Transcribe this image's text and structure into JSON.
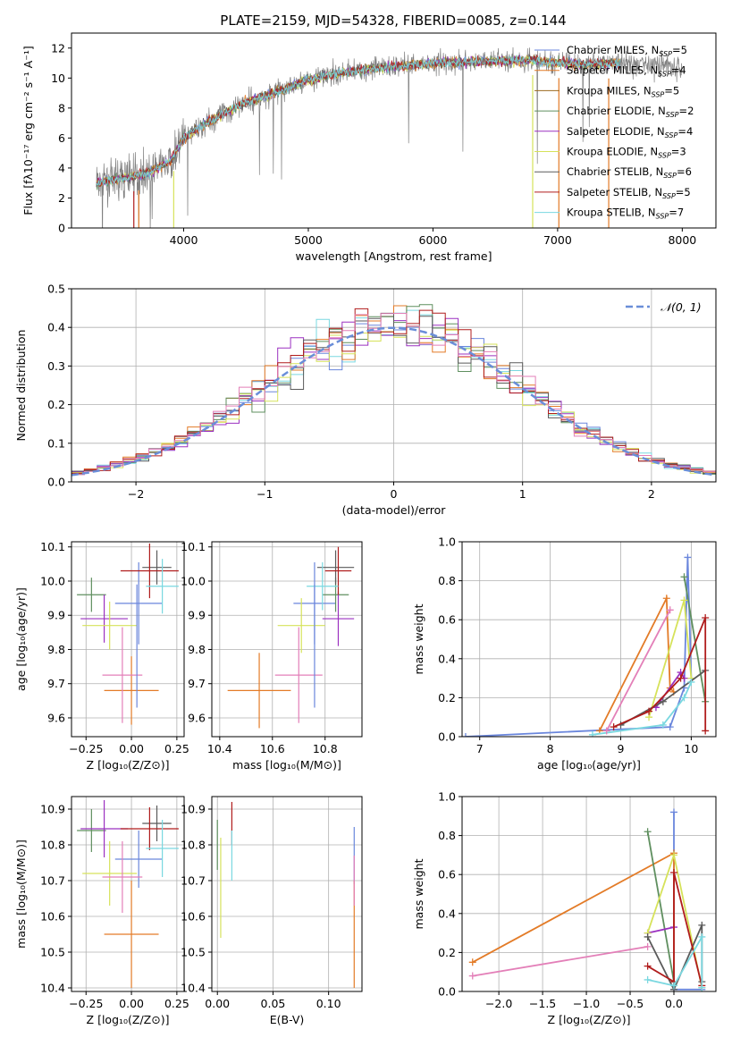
{
  "title": "PLATE=2159, MJD=54328, FIBERID=0085, z=0.144",
  "colors": {
    "Chabrier MILES": "#6a86dc",
    "Salpeter MILES": "#e37b27",
    "Kroupa MILES": "#9b6a1f",
    "Chabrier ELODIE": "#5f8f5f",
    "Salpeter ELODIE": "#9b30c0",
    "Kroupa ELODIE": "#d6e25a",
    "Chabrier STELIB": "#5a5a5a",
    "Salpeter STELIB": "#b01c1c",
    "Kroupa STELIB": "#7ad8e0",
    "pink": "#e37fb8",
    "data": "#808080",
    "grid": "#b0b0b0",
    "gauss": "#6a8ed8"
  },
  "chart_data": [
    {
      "type": "line",
      "name": "spectrum",
      "xlabel": "wavelength [Angstrom, rest frame]",
      "ylabel": "Flux [fλ10⁻¹⁷ erg cm⁻² s⁻¹ A⁻¹]",
      "xlim": [
        3100,
        8270
      ],
      "ylim": [
        0,
        13
      ],
      "xticks": [
        "4000",
        "5000",
        "6000",
        "7000",
        "8000"
      ],
      "yticks": [
        "0",
        "2",
        "4",
        "6",
        "8",
        "10",
        "12"
      ],
      "grid": false,
      "legend_position": "top-right",
      "legend": [
        "Chabrier MILES, N_SSP=5",
        "Salpeter MILES, N_SSP=4",
        "Kroupa MILES, N_SSP=5",
        "Chabrier ELODIE, N_SSP=2",
        "Salpeter ELODIE, N_SSP=4",
        "Kroupa ELODIE, N_SSP=3",
        "Chabrier STELIB, N_SSP=6",
        "Salpeter STELIB, N_SSP=5",
        "Kroupa STELIB, N_SSP=7"
      ],
      "continuum": {
        "x": [
          3300,
          3500,
          3700,
          3900,
          4000,
          4200,
          4500,
          4800,
          5000,
          5300,
          5600,
          6000,
          6400,
          6800,
          7000,
          7200,
          7500,
          7800,
          8000
        ],
        "y": [
          3.0,
          3.3,
          3.6,
          4.5,
          6.0,
          7.1,
          8.4,
          9.2,
          9.9,
          10.4,
          10.7,
          11.0,
          11.1,
          11.2,
          11.0,
          10.9,
          11.0,
          10.9,
          10.8
        ]
      },
      "model_range": [
        3300,
        7500
      ],
      "data_range": [
        3300,
        8000
      ]
    },
    {
      "type": "bar",
      "name": "residual-histogram",
      "xlabel": "(data-model)/error",
      "ylabel": "Normed distribution",
      "xlim": [
        -2.5,
        2.5
      ],
      "ylim": [
        0,
        0.5
      ],
      "xticks": [
        "−2",
        "−1",
        "0",
        "1",
        "2"
      ],
      "yticks": [
        "0.0",
        "0.1",
        "0.2",
        "0.3",
        "0.4",
        "0.5"
      ],
      "grid": true,
      "legend": [
        "𝒩(0, 1)"
      ],
      "bin_width": 0.1
    },
    {
      "type": "scatter",
      "name": "age-vs-Z",
      "xlabel": "Z [log₁₀(Z/Z⊙)]",
      "ylabel": "age  [log₁₀(age/yr)]",
      "xlim": [
        -0.33,
        0.29
      ],
      "ylim": [
        9.545,
        10.115
      ],
      "xticks": [
        "−0.25",
        "0.00",
        "0.25"
      ],
      "yticks": [
        "9.6",
        "9.7",
        "9.8",
        "9.9",
        "10.0",
        "10.1"
      ],
      "grid": true,
      "points": [
        {
          "c": "Chabrier MILES",
          "x": 0.04,
          "y": 9.935,
          "xerr": 0.13,
          "yerr": 0.12
        },
        {
          "c": "Salpeter MILES",
          "x": 0.0,
          "y": 9.68,
          "xerr": 0.15,
          "yerr": 0.1
        },
        {
          "c": "Chabrier ELODIE",
          "x": -0.22,
          "y": 9.96,
          "xerr": 0.08,
          "yerr": 0.05
        },
        {
          "c": "Salpeter ELODIE",
          "x": -0.15,
          "y": 9.89,
          "xerr": 0.13,
          "yerr": 0.07
        },
        {
          "c": "Kroupa ELODIE",
          "x": -0.12,
          "y": 9.87,
          "xerr": 0.15,
          "yerr": 0.07
        },
        {
          "c": "Chabrier STELIB",
          "x": 0.14,
          "y": 10.04,
          "xerr": 0.08,
          "yerr": 0.05
        },
        {
          "c": "Salpeter STELIB",
          "x": 0.1,
          "y": 10.03,
          "xerr": 0.16,
          "yerr": 0.08
        },
        {
          "c": "Kroupa STELIB",
          "x": 0.17,
          "y": 9.985,
          "xerr": 0.09,
          "yerr": 0.08
        },
        {
          "c": "pink",
          "x": -0.05,
          "y": 9.725,
          "xerr": 0.11,
          "yerr": 0.14
        },
        {
          "c": "Chabrier MILES",
          "x": 0.03,
          "y": 9.81,
          "xerr": 0.0,
          "yerr": 0.18
        }
      ]
    },
    {
      "type": "scatter",
      "name": "age-vs-mass",
      "xlabel": "mass [log₁₀(M/M⊙)]",
      "ylabel": "",
      "xlim": [
        10.37,
        10.94
      ],
      "ylim": [
        9.545,
        10.115
      ],
      "xticks": [
        "10.4",
        "10.6",
        "10.8"
      ],
      "yticks": [
        "9.6",
        "9.7",
        "9.8",
        "9.9",
        "10.0",
        "10.1"
      ],
      "grid": true,
      "points": [
        {
          "c": "Chabrier MILES",
          "x": 10.76,
          "y": 9.935,
          "xerr": 0.08,
          "yerr": 0.12
        },
        {
          "c": "Salpeter MILES",
          "x": 10.55,
          "y": 9.68,
          "xerr": 0.12,
          "yerr": 0.11
        },
        {
          "c": "Chabrier ELODIE",
          "x": 10.84,
          "y": 9.96,
          "xerr": 0.05,
          "yerr": 0.05
        },
        {
          "c": "Salpeter ELODIE",
          "x": 10.85,
          "y": 9.89,
          "xerr": 0.06,
          "yerr": 0.08
        },
        {
          "c": "Kroupa ELODIE",
          "x": 10.71,
          "y": 9.87,
          "xerr": 0.09,
          "yerr": 0.08
        },
        {
          "c": "Chabrier STELIB",
          "x": 10.84,
          "y": 10.04,
          "xerr": 0.07,
          "yerr": 0.05
        },
        {
          "c": "Salpeter STELIB",
          "x": 10.85,
          "y": 10.03,
          "xerr": 0.05,
          "yerr": 0.07
        },
        {
          "c": "Kroupa STELIB",
          "x": 10.79,
          "y": 9.985,
          "xerr": 0.06,
          "yerr": 0.07
        },
        {
          "c": "pink",
          "x": 10.7,
          "y": 9.725,
          "xerr": 0.09,
          "yerr": 0.14
        },
        {
          "c": "Chabrier MILES",
          "x": 10.76,
          "y": 9.81,
          "xerr": 0.0,
          "yerr": 0.18
        }
      ]
    },
    {
      "type": "line",
      "name": "mass-weight-vs-age",
      "xlabel": "age  [log₁₀(age/yr)]",
      "ylabel": "mass weight",
      "xlim": [
        6.75,
        10.35
      ],
      "ylim": [
        0,
        1
      ],
      "xticks": [
        "7",
        "8",
        "9",
        "10"
      ],
      "yticks": [
        "0.0",
        "0.2",
        "0.4",
        "0.6",
        "0.8",
        "1.0"
      ],
      "grid": true,
      "series": [
        {
          "c": "Chabrier MILES",
          "x": [
            6.8,
            9.7,
            9.9,
            9.95,
            10.0
          ],
          "y": [
            0.0,
            0.05,
            0.25,
            0.92,
            0.3
          ]
        },
        {
          "c": "Salpeter MILES",
          "x": [
            8.7,
            9.65,
            9.7,
            9.75
          ],
          "y": [
            0.03,
            0.71,
            0.25,
            0.23
          ]
        },
        {
          "c": "Chabrier ELODIE",
          "x": [
            9.9,
            10.2
          ],
          "y": [
            0.82,
            0.18
          ]
        },
        {
          "c": "Salpeter ELODIE",
          "x": [
            9.5,
            9.85,
            9.9
          ],
          "y": [
            0.15,
            0.33,
            0.3
          ]
        },
        {
          "c": "Kroupa ELODIE",
          "x": [
            9.4,
            9.9,
            10.0
          ],
          "y": [
            0.1,
            0.7,
            0.3
          ]
        },
        {
          "c": "Chabrier STELIB",
          "x": [
            9.0,
            9.6,
            10.2
          ],
          "y": [
            0.06,
            0.18,
            0.34
          ]
        },
        {
          "c": "Salpeter STELIB",
          "x": [
            8.9,
            9.4,
            9.85,
            10.2,
            10.2
          ],
          "y": [
            0.05,
            0.13,
            0.3,
            0.61,
            0.03
          ]
        },
        {
          "c": "Kroupa STELIB",
          "x": [
            8.6,
            9.6,
            9.9,
            10.0
          ],
          "y": [
            0.01,
            0.06,
            0.2,
            0.28
          ]
        },
        {
          "c": "pink",
          "x": [
            8.8,
            9.7
          ],
          "y": [
            0.03,
            0.65
          ]
        }
      ]
    },
    {
      "type": "scatter",
      "name": "mass-vs-Z",
      "xlabel": "Z [log₁₀(Z/Z⊙)]",
      "ylabel": "mass [log₁₀(M/M⊙)]",
      "xlim": [
        -0.33,
        0.29
      ],
      "ylim": [
        10.39,
        10.935
      ],
      "xticks": [
        "−0.25",
        "0.00",
        "0.25"
      ],
      "yticks": [
        "10.4",
        "10.5",
        "10.6",
        "10.7",
        "10.8",
        "10.9"
      ],
      "grid": true,
      "points": [
        {
          "c": "Chabrier MILES",
          "x": 0.04,
          "y": 10.76,
          "xerr": 0.13,
          "yerr": 0.08
        },
        {
          "c": "Salpeter MILES",
          "x": 0.0,
          "y": 10.55,
          "xerr": 0.15,
          "yerr": 0.15
        },
        {
          "c": "Chabrier ELODIE",
          "x": -0.22,
          "y": 10.84,
          "xerr": 0.08,
          "yerr": 0.06
        },
        {
          "c": "Salpeter ELODIE",
          "x": -0.15,
          "y": 10.845,
          "xerr": 0.13,
          "yerr": 0.08
        },
        {
          "c": "Kroupa ELODIE",
          "x": -0.12,
          "y": 10.72,
          "xerr": 0.15,
          "yerr": 0.09
        },
        {
          "c": "Chabrier STELIB",
          "x": 0.14,
          "y": 10.86,
          "xerr": 0.08,
          "yerr": 0.05
        },
        {
          "c": "Salpeter STELIB",
          "x": 0.1,
          "y": 10.845,
          "xerr": 0.16,
          "yerr": 0.06
        },
        {
          "c": "Kroupa STELIB",
          "x": 0.17,
          "y": 10.79,
          "xerr": 0.09,
          "yerr": 0.08
        },
        {
          "c": "pink",
          "x": -0.05,
          "y": 10.71,
          "xerr": 0.11,
          "yerr": 0.1
        }
      ]
    },
    {
      "type": "scatter",
      "name": "mass-vs-EBV",
      "xlabel": "E(B-V)",
      "ylabel": "",
      "xlim": [
        -0.005,
        0.13
      ],
      "ylim": [
        10.39,
        10.935
      ],
      "xticks": [
        "0.00",
        "0.05",
        "0.10"
      ],
      "yticks": [
        "10.4",
        "10.5",
        "10.6",
        "10.7",
        "10.8",
        "10.9"
      ],
      "grid": true,
      "points": [
        {
          "c": "Chabrier ELODIE",
          "x": 0.0,
          "y": 10.8,
          "xerr": 0.0,
          "yerr": 0.07
        },
        {
          "c": "Kroupa ELODIE",
          "x": 0.003,
          "y": 10.68,
          "xerr": 0.0,
          "yerr": 0.14
        },
        {
          "c": "Salpeter STELIB",
          "x": 0.013,
          "y": 10.86,
          "xerr": 0.0,
          "yerr": 0.06
        },
        {
          "c": "Kroupa STELIB",
          "x": 0.013,
          "y": 10.77,
          "xerr": 0.0,
          "yerr": 0.07
        },
        {
          "c": "Chabrier MILES",
          "x": 0.123,
          "y": 10.77,
          "xerr": 0.0,
          "yerr": 0.08
        },
        {
          "c": "Salpeter MILES",
          "x": 0.123,
          "y": 10.55,
          "xerr": 0.0,
          "yerr": 0.15
        },
        {
          "c": "pink",
          "x": 0.123,
          "y": 10.7,
          "xerr": 0.0,
          "yerr": 0.07
        }
      ]
    },
    {
      "type": "line",
      "name": "mass-weight-vs-Z",
      "xlabel": "Z [log₁₀(Z/Z⊙)]",
      "ylabel": "mass weight",
      "xlim": [
        -2.42,
        0.48
      ],
      "ylim": [
        0,
        1
      ],
      "xticks": [
        "−2.0",
        "−1.5",
        "−1.0",
        "−0.5",
        "0.0"
      ],
      "yticks": [
        "0.0",
        "0.2",
        "0.4",
        "0.6",
        "0.8",
        "1.0"
      ],
      "grid": true,
      "series": [
        {
          "c": "Chabrier MILES",
          "x": [
            0.0,
            0.0,
            0.0,
            0.32
          ],
          "y": [
            0.92,
            0.05,
            0.01,
            0.01
          ]
        },
        {
          "c": "Salpeter MILES",
          "x": [
            -2.3,
            0.0,
            0.0
          ],
          "y": [
            0.15,
            0.71,
            0.05
          ]
        },
        {
          "c": "Chabrier ELODIE",
          "x": [
            -0.3,
            0.0
          ],
          "y": [
            0.82,
            0.05
          ]
        },
        {
          "c": "Salpeter ELODIE",
          "x": [
            -0.3,
            0.0
          ],
          "y": [
            0.3,
            0.33
          ]
        },
        {
          "c": "Kroupa ELODIE",
          "x": [
            -0.3,
            0.0,
            0.32
          ],
          "y": [
            0.3,
            0.7,
            0.02
          ]
        },
        {
          "c": "Chabrier STELIB",
          "x": [
            -0.3,
            0.0,
            0.32,
            0.32
          ],
          "y": [
            0.28,
            0.01,
            0.34,
            0.05
          ]
        },
        {
          "c": "Salpeter STELIB",
          "x": [
            -0.3,
            0.0,
            0.0,
            0.32
          ],
          "y": [
            0.13,
            0.05,
            0.61,
            0.03
          ]
        },
        {
          "c": "Kroupa STELIB",
          "x": [
            -0.3,
            0.0,
            0.32,
            0.32
          ],
          "y": [
            0.06,
            0.03,
            0.28,
            0.02
          ]
        },
        {
          "c": "pink",
          "x": [
            -2.3,
            -0.3
          ],
          "y": [
            0.08,
            0.23
          ]
        }
      ]
    }
  ]
}
